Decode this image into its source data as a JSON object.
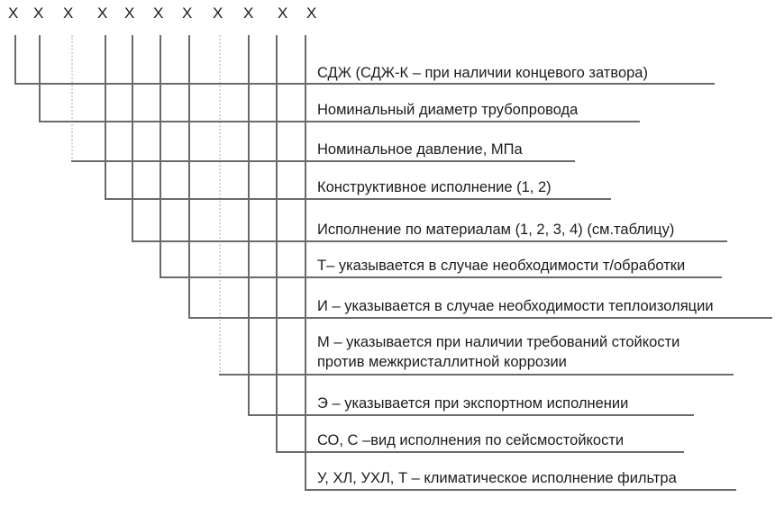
{
  "diagram": {
    "kind": "designation-code-structure",
    "placeholders": [
      "Х",
      "Х",
      "Х",
      "Х",
      "Х",
      "Х",
      "Х",
      "Х",
      "Х",
      "Х",
      "Х"
    ],
    "rows": [
      {
        "label": "СДЖ (СДЖ-К – при наличии концевого затвора)"
      },
      {
        "label": "Номинальный диаметр трубопровода"
      },
      {
        "label": "Номинальное давление, МПа"
      },
      {
        "label": "Конструктивное исполнение (1, 2)"
      },
      {
        "label": "Исполнение по материалам (1, 2, 3, 4) (см.таблицу)"
      },
      {
        "label": "Т– указывается в случае необходимости т/обработки"
      },
      {
        "label": "И – указывается в случае необходимости теплоизоляции"
      },
      {
        "label": "М – указывается при наличии требований стойкости",
        "label2": "против межкристаллитной коррозии"
      },
      {
        "label": "Э – указывается при экспортном исполнении"
      },
      {
        "label": "СО, С –вид исполнения по сейсмостойкости"
      },
      {
        "label": "У, ХЛ, УХЛ, Т – климатическое исполнение фильтра"
      }
    ],
    "colors": {
      "line": "#6a6a6a",
      "line_faint": "#d4d4d4",
      "text": "#1c1c1c",
      "background": "#ffffff"
    }
  }
}
